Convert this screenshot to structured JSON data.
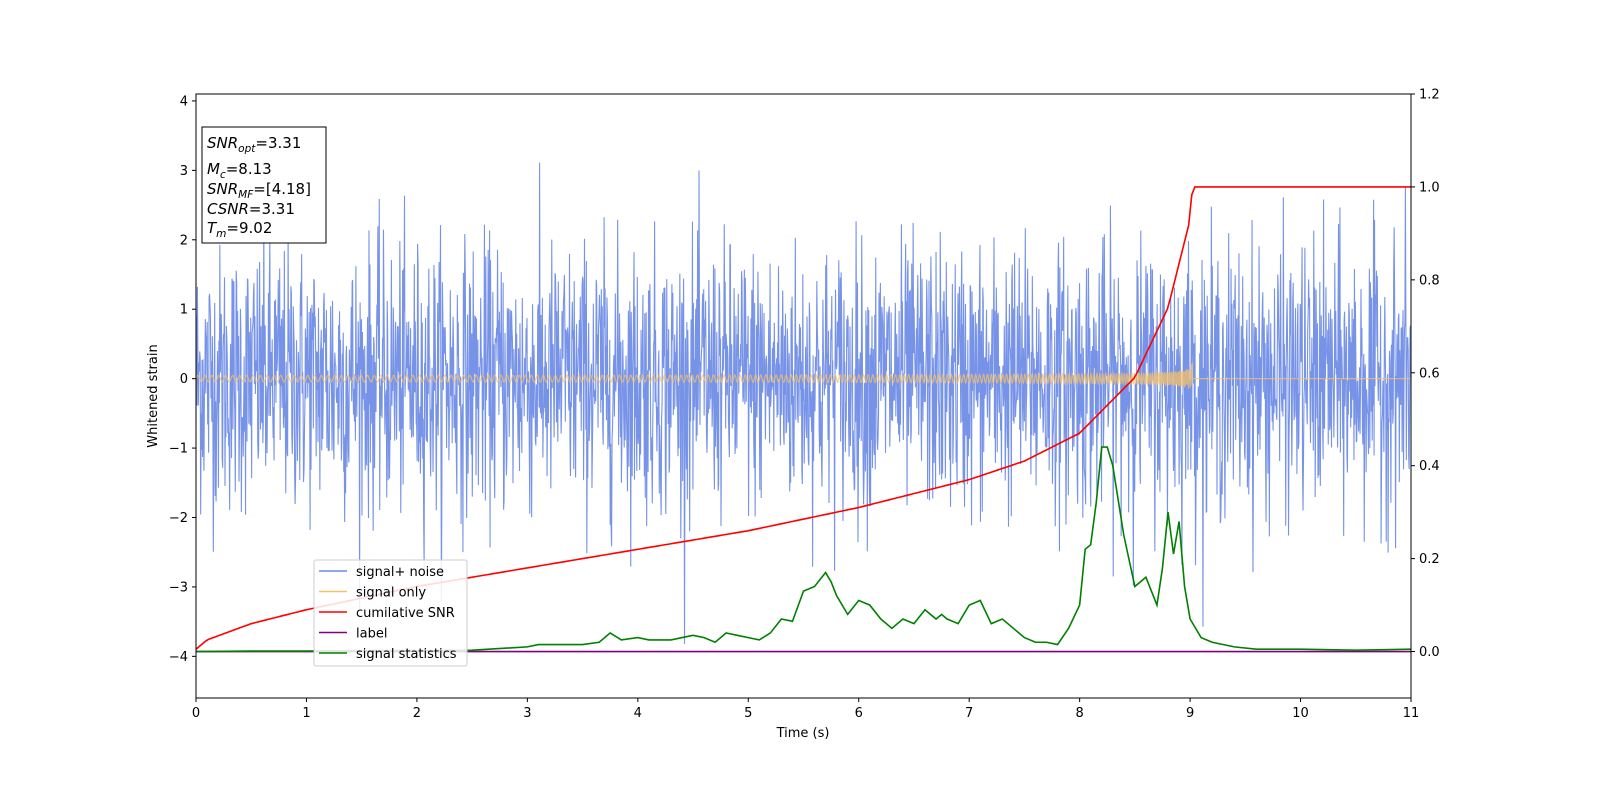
{
  "chart_data": {
    "type": "line",
    "xlabel": "Time (s)",
    "ylabel": "Whitened strain",
    "xlim": [
      0,
      11
    ],
    "ylim_left": [
      -4.6,
      4.1
    ],
    "ylim_right": [
      -0.1,
      1.2
    ],
    "x_ticks": [
      "0",
      "1",
      "2",
      "3",
      "4",
      "5",
      "6",
      "7",
      "8",
      "9",
      "10",
      "11"
    ],
    "y_ticks_left": [
      "4",
      "3",
      "2",
      "1",
      "0",
      "−1",
      "−2",
      "−3",
      "−4"
    ],
    "y_ticks_right": [
      "1.2",
      "1.0",
      "0.8",
      "0.6",
      "0.4",
      "0.2",
      "0.0"
    ],
    "colors": {
      "noise": "#6b8ae6",
      "signal": "#f5c06a",
      "cumsnr": "#ff0000",
      "label": "#800080",
      "stats": "#008000"
    },
    "annotation": {
      "snr_opt": {
        "base": "SNR",
        "sub": "opt",
        "value": "=3.31"
      },
      "mc": {
        "base": "M",
        "sub": "c",
        "value": "=8.13"
      },
      "snr_mf": {
        "base": "SNR",
        "sub": "MF",
        "value": "=[4.18]"
      },
      "csnr": {
        "base": "CSNR",
        "value": "=3.31"
      },
      "tm": {
        "base": "T",
        "sub": "m",
        "value": "=9.02"
      }
    },
    "legend_position": "lower-left",
    "series": [
      {
        "name": "signal+ noise",
        "axis": "left",
        "kind": "noise",
        "std": 1.0,
        "xrange": [
          0,
          11
        ]
      },
      {
        "name": "signal only",
        "axis": "left",
        "kind": "chirp",
        "t_merger": 9.02,
        "peak_amplitude": 0.5
      },
      {
        "name": "cumilative SNR",
        "axis": "right",
        "x": [
          0,
          0.1,
          0.5,
          1,
          2,
          3,
          4,
          5,
          6,
          7,
          7.5,
          8,
          8.5,
          8.8,
          9.0,
          9.02,
          11
        ],
        "y": [
          0.005,
          0.025,
          0.06,
          0.09,
          0.14,
          0.18,
          0.22,
          0.26,
          0.31,
          0.37,
          0.41,
          0.47,
          0.59,
          0.74,
          0.93,
          1.0,
          1.0
        ]
      },
      {
        "name": "label",
        "axis": "right",
        "x": [
          0,
          11
        ],
        "y": [
          0.0,
          0.0
        ]
      },
      {
        "name": "signal statistics",
        "axis": "right",
        "x": [
          0,
          0.5,
          1,
          1.5,
          2,
          2.5,
          3,
          3.1,
          3.5,
          3.65,
          3.75,
          3.85,
          4.0,
          4.1,
          4.3,
          4.5,
          4.6,
          4.7,
          4.8,
          4.9,
          5.0,
          5.1,
          5.2,
          5.3,
          5.4,
          5.5,
          5.6,
          5.7,
          5.75,
          5.8,
          5.9,
          6.0,
          6.1,
          6.2,
          6.3,
          6.4,
          6.5,
          6.6,
          6.7,
          6.75,
          6.8,
          6.9,
          7.0,
          7.1,
          7.2,
          7.3,
          7.4,
          7.5,
          7.6,
          7.7,
          7.8,
          7.9,
          8.0,
          8.05,
          8.1,
          8.15,
          8.2,
          8.25,
          8.3,
          8.4,
          8.5,
          8.6,
          8.7,
          8.75,
          8.8,
          8.85,
          8.9,
          8.95,
          9.0,
          9.1,
          9.2,
          9.4,
          9.6,
          10.0,
          10.5,
          11
        ],
        "y": [
          0.0,
          0.001,
          0.001,
          0.002,
          0.002,
          0.003,
          0.01,
          0.015,
          0.015,
          0.02,
          0.04,
          0.025,
          0.03,
          0.025,
          0.025,
          0.035,
          0.03,
          0.02,
          0.04,
          0.035,
          0.03,
          0.025,
          0.04,
          0.07,
          0.065,
          0.13,
          0.14,
          0.17,
          0.15,
          0.12,
          0.08,
          0.11,
          0.1,
          0.07,
          0.05,
          0.07,
          0.06,
          0.09,
          0.07,
          0.08,
          0.07,
          0.06,
          0.1,
          0.11,
          0.06,
          0.07,
          0.05,
          0.03,
          0.02,
          0.02,
          0.015,
          0.05,
          0.1,
          0.22,
          0.23,
          0.32,
          0.44,
          0.44,
          0.4,
          0.25,
          0.14,
          0.16,
          0.1,
          0.18,
          0.3,
          0.21,
          0.28,
          0.14,
          0.07,
          0.03,
          0.02,
          0.01,
          0.005,
          0.005,
          0.003,
          0.005
        ]
      }
    ]
  }
}
